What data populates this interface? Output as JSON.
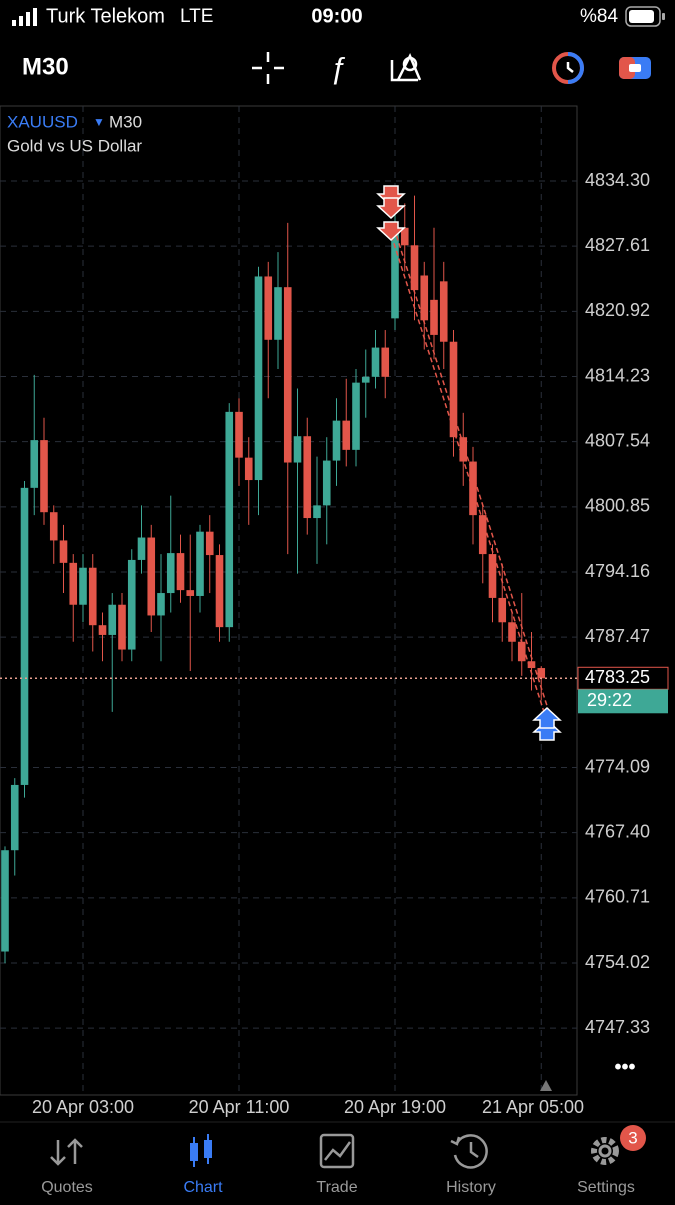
{
  "status_bar": {
    "carrier": "Turk Telekom",
    "network": "LTE",
    "time": "09:00",
    "battery": "%84"
  },
  "toolbar": {
    "timeframe": "M30"
  },
  "chart_data": {
    "type": "candlestick",
    "symbol": "XAUUSD",
    "timeframe": "M30",
    "subtitle": "Gold vs US Dollar",
    "open": [
      4755.2,
      4765.6,
      4772.3,
      4802.8,
      4807.7,
      4800.3,
      4797.4,
      4795.1,
      4790.8,
      4794.6,
      4788.7,
      4787.7,
      4790.8,
      4786.2,
      4795.4,
      4797.7,
      4789.7,
      4792.0,
      4796.1,
      4792.3,
      4791.7,
      4798.3,
      4795.9,
      4788.5,
      4810.6,
      4805.9,
      4803.6,
      4824.5,
      4818.0,
      4823.4,
      4805.4,
      4808.1,
      4799.7,
      4801.0,
      4805.6,
      4809.7,
      4806.7,
      4813.6,
      4814.2,
      4817.2,
      4820.2,
      4829.5,
      4827.7,
      4824.6,
      4822.1,
      4824.0,
      4817.8,
      4808.0,
      4805.5,
      4800.0,
      4796.0,
      4791.5,
      4789.0,
      4787.0,
      4785.0,
      4784.3
    ],
    "high": [
      4766.0,
      4773.0,
      4803.5,
      4814.4,
      4810.0,
      4801.0,
      4799.0,
      4796.0,
      4796.0,
      4796.0,
      4790.0,
      4792.0,
      4792.0,
      4796.5,
      4801.0,
      4799.0,
      4796.0,
      4802.0,
      4798.0,
      4798.0,
      4799.0,
      4800.0,
      4797.0,
      4811.5,
      4812.0,
      4808.0,
      4825.5,
      4826.0,
      4827.0,
      4830.0,
      4813.0,
      4810.0,
      4806.0,
      4808.0,
      4812.0,
      4814.0,
      4815.0,
      4817.0,
      4819.0,
      4819.0,
      4831.0,
      4832.0,
      4832.8,
      4826.0,
      4829.5,
      4826.0,
      4819.0,
      4810.5,
      4807.0,
      4801.0,
      4797.0,
      4795.0,
      4790.0,
      4792.0,
      4788.0,
      4784.5
    ],
    "low": [
      4754.0,
      4763.0,
      4771.0,
      4800.0,
      4799.0,
      4795.0,
      4792.0,
      4787.0,
      4789.0,
      4786.0,
      4785.0,
      4779.8,
      4785.0,
      4785.0,
      4794.0,
      4788.0,
      4785.0,
      4790.0,
      4791.0,
      4784.0,
      4790.0,
      4792.0,
      4787.0,
      4787.0,
      4803.0,
      4799.0,
      4800.0,
      4812.0,
      4815.0,
      4796.0,
      4794.0,
      4798.0,
      4795.0,
      4797.0,
      4803.0,
      4805.0,
      4805.0,
      4810.0,
      4813.0,
      4812.0,
      4819.0,
      4825.0,
      4820.0,
      4817.0,
      4816.0,
      4815.0,
      4806.0,
      4803.0,
      4797.0,
      4793.0,
      4789.0,
      4787.0,
      4785.0,
      4783.5,
      4782.0,
      4781.0
    ],
    "close": [
      4765.6,
      4772.3,
      4802.8,
      4807.7,
      4800.3,
      4797.4,
      4795.1,
      4790.8,
      4794.6,
      4788.7,
      4787.7,
      4790.8,
      4786.2,
      4795.4,
      4797.7,
      4789.7,
      4792.0,
      4796.1,
      4792.3,
      4791.7,
      4798.3,
      4795.9,
      4788.5,
      4810.6,
      4805.9,
      4803.6,
      4824.5,
      4818.0,
      4823.4,
      4805.4,
      4808.1,
      4799.7,
      4801.0,
      4805.6,
      4809.7,
      4806.7,
      4813.6,
      4814.2,
      4817.2,
      4814.2,
      4829.5,
      4827.7,
      4823.1,
      4820.0,
      4818.5,
      4817.8,
      4808.0,
      4805.5,
      4800.0,
      4796.0,
      4791.5,
      4789.0,
      4787.0,
      4785.0,
      4784.3,
      4783.25
    ],
    "ylim": [
      4740.47,
      4842.0
    ],
    "yticks": [
      {
        "value": 4834.3,
        "label": "4834.30"
      },
      4827.61,
      4820.92,
      4814.23,
      4807.54,
      4800.85,
      4794.16,
      4787.47,
      4774.09,
      {
        "value": 4767.4,
        "label": "4767.40"
      },
      4760.71,
      4754.02,
      4747.33
    ],
    "xticks": [
      {
        "value": 8,
        "label": "20 Apr 03:00"
      },
      {
        "value": 24,
        "label": "20 Apr 11:00"
      },
      {
        "value": 40,
        "label": "20 Apr 19:00"
      },
      {
        "value": 55,
        "label": "21 Apr 05:00"
      }
    ],
    "current_price": 4783.25,
    "countdown": "29:22",
    "colors": {
      "up": "#3ea896",
      "down": "#e2564a"
    },
    "grid": true
  },
  "tab_bar": {
    "items": [
      "Quotes",
      "Chart",
      "Trade",
      "History",
      "Settings"
    ],
    "active": 1,
    "settings_badge": "3"
  }
}
